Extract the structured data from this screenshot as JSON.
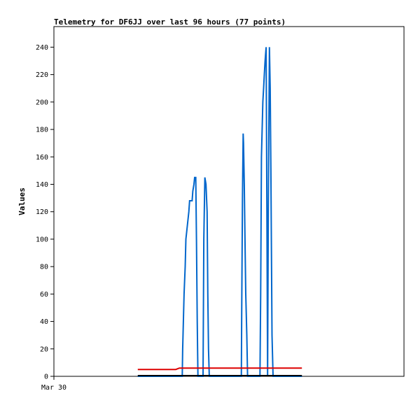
{
  "chart_data": {
    "type": "line",
    "title": "Telemetry for DF6JJ over last 96 hours (77 points)",
    "xlabel": "",
    "ylabel": "Values",
    "ylim": [
      0,
      255
    ],
    "xlim": [
      0,
      96
    ],
    "yticks": [
      0,
      20,
      40,
      60,
      80,
      100,
      120,
      140,
      160,
      180,
      200,
      220,
      240
    ],
    "xticks": [
      {
        "x": 0,
        "label": "Mar 30"
      }
    ],
    "grid": false,
    "legend": "none",
    "series": [
      {
        "color": "#0066cc",
        "points": [
          [
            23.0,
            0
          ],
          [
            34.0,
            0
          ],
          [
            35.2,
            0
          ],
          [
            35.3,
            20
          ],
          [
            35.5,
            40
          ],
          [
            35.7,
            60
          ],
          [
            36.0,
            80
          ],
          [
            36.2,
            100
          ],
          [
            36.6,
            110
          ],
          [
            37.0,
            120
          ],
          [
            37.2,
            128
          ],
          [
            37.6,
            128
          ],
          [
            37.9,
            128
          ],
          [
            38.1,
            135
          ],
          [
            38.4,
            140
          ],
          [
            38.6,
            145
          ],
          [
            38.9,
            145
          ],
          [
            39.1,
            100
          ],
          [
            39.3,
            40
          ],
          [
            39.5,
            0
          ],
          [
            40.9,
            0
          ],
          [
            41.1,
            100
          ],
          [
            41.4,
            145
          ],
          [
            41.7,
            140
          ],
          [
            42.0,
            120
          ],
          [
            42.2,
            60
          ],
          [
            42.4,
            20
          ],
          [
            42.6,
            0
          ],
          [
            51.4,
            0
          ],
          [
            51.5,
            45
          ],
          [
            51.7,
            130
          ],
          [
            51.9,
            177
          ],
          [
            52.0,
            170
          ],
          [
            52.2,
            140
          ],
          [
            52.4,
            100
          ],
          [
            52.6,
            60
          ],
          [
            52.9,
            30
          ],
          [
            53.1,
            0
          ],
          [
            56.5,
            0
          ],
          [
            56.7,
            60
          ],
          [
            56.9,
            160
          ],
          [
            57.1,
            180
          ],
          [
            57.3,
            200
          ],
          [
            57.5,
            210
          ],
          [
            57.7,
            220
          ],
          [
            57.9,
            230
          ],
          [
            58.2,
            240
          ],
          [
            58.4,
            120
          ],
          [
            58.6,
            0
          ],
          [
            58.8,
            120
          ],
          [
            59.1,
            240
          ],
          [
            59.3,
            210
          ],
          [
            59.5,
            150
          ],
          [
            59.8,
            30
          ],
          [
            60.1,
            0
          ],
          [
            68.0,
            0
          ]
        ]
      },
      {
        "color": "#dd0000",
        "points": [
          [
            23.0,
            5
          ],
          [
            33.4,
            5
          ],
          [
            34.4,
            6
          ],
          [
            68.0,
            6
          ]
        ]
      },
      {
        "color": "#000000",
        "points": [
          [
            23.0,
            0.5
          ],
          [
            68.0,
            0.5
          ]
        ]
      }
    ]
  }
}
